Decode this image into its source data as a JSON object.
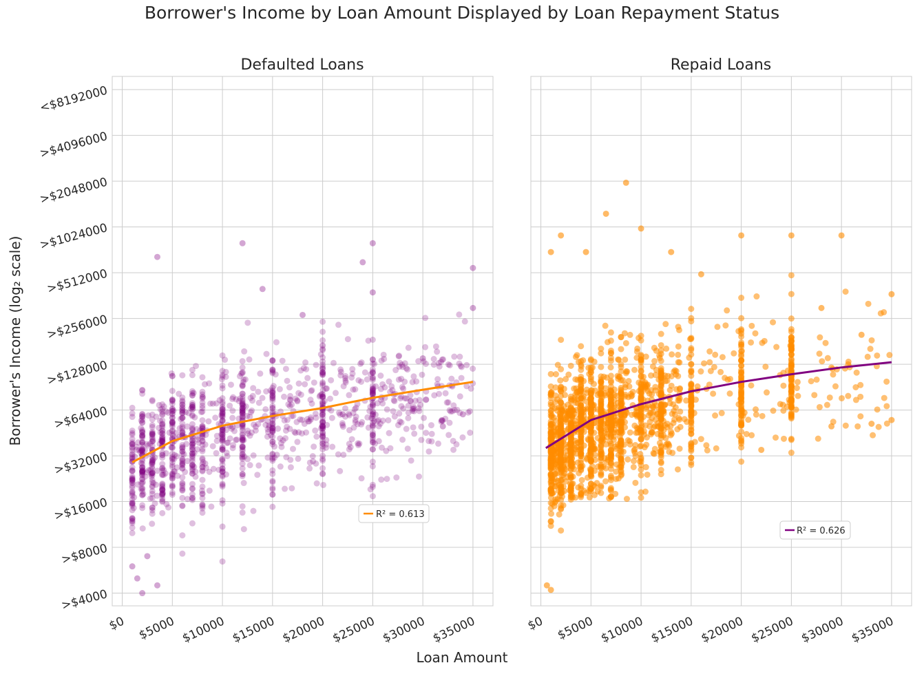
{
  "figure": {
    "title": "Borrower's Income by Loan Amount Displayed by Loan Repayment Status",
    "xlabel": "Loan Amount",
    "ylabel": "Borrower's Income (log₂  scale)"
  },
  "colors": {
    "purple": "#800080",
    "orange": "#ff8c00",
    "grid": "#cccccc",
    "text": "#262626"
  },
  "chart_data": [
    {
      "type": "scatter",
      "title": "Defaulted Loans",
      "x_scale": "linear",
      "y_scale": "log2",
      "xlim": [
        -1000,
        37000
      ],
      "ylim": [
        3300,
        10000000
      ],
      "x_ticks": [
        0,
        5000,
        10000,
        15000,
        20000,
        25000,
        30000,
        35000
      ],
      "x_tick_labels": [
        "$0",
        "$5000",
        "$10000",
        "$15000",
        "$20000",
        "$25000",
        "$30000",
        "$35000"
      ],
      "y_ticks": [
        4000,
        8000,
        16000,
        32000,
        64000,
        128000,
        256000,
        512000,
        1024000,
        2048000,
        4096000,
        8192000
      ],
      "y_tick_labels": [
        ">$4000",
        ">$8000",
        ">$16000",
        ">$32000",
        ">$64000",
        ">$128000",
        ">$256000",
        ">$512000",
        ">$1024000",
        ">$2048000",
        ">$4096000",
        "<$8192000"
      ],
      "grid": true,
      "points_color": "#800080",
      "fit_color": "#ff8c00",
      "legend": "R² = 0.613",
      "legend_position": "lower-right",
      "sample_points": [
        [
          3500,
          650000
        ],
        [
          12000,
          800000
        ],
        [
          14000,
          400000
        ],
        [
          24000,
          600000
        ],
        [
          25000,
          800000
        ],
        [
          35000,
          550000
        ],
        [
          18000,
          270000
        ],
        [
          25000,
          380000
        ],
        [
          35000,
          300000
        ],
        [
          2000,
          4000
        ],
        [
          1500,
          5000
        ],
        [
          3500,
          4500
        ],
        [
          2500,
          7000
        ],
        [
          1000,
          6000
        ],
        [
          30000,
          140000
        ],
        [
          32000,
          50000
        ],
        [
          29000,
          65000
        ],
        [
          34000,
          60000
        ],
        [
          22000,
          60000
        ],
        [
          20000,
          170000
        ]
      ],
      "fit_curve": {
        "x": [
          1000,
          5000,
          10000,
          15000,
          20000,
          25000,
          30000,
          35000
        ],
        "y": [
          29000,
          40000,
          50500,
          58500,
          66000,
          77000,
          87000,
          98000
        ]
      }
    },
    {
      "type": "scatter",
      "title": "Repaid Loans",
      "x_scale": "linear",
      "y_scale": "log2",
      "xlim": [
        -1000,
        37000
      ],
      "ylim": [
        3300,
        10000000
      ],
      "x_ticks": [
        0,
        5000,
        10000,
        15000,
        20000,
        25000,
        30000,
        35000
      ],
      "x_tick_labels": [
        "$0",
        "$5000",
        "$10000",
        "$15000",
        "$20000",
        "$25000",
        "$30000",
        "$35000"
      ],
      "grid": true,
      "points_color": "#ff8c00",
      "fit_color": "#800080",
      "legend": "R² = 0.626",
      "legend_position": "lower-right",
      "sample_points": [
        [
          8500,
          2000000
        ],
        [
          6500,
          1250000
        ],
        [
          10000,
          1000000
        ],
        [
          2000,
          900000
        ],
        [
          1000,
          700000
        ],
        [
          4500,
          700000
        ],
        [
          25000,
          900000
        ],
        [
          20000,
          900000
        ],
        [
          30000,
          900000
        ],
        [
          16000,
          500000
        ],
        [
          13000,
          700000
        ],
        [
          600,
          4500
        ],
        [
          1000,
          4200
        ],
        [
          35000,
          370000
        ],
        [
          28000,
          300000
        ],
        [
          32000,
          200000
        ],
        [
          35000,
          55000
        ],
        [
          29000,
          50000
        ],
        [
          33000,
          52000
        ],
        [
          22000,
          35000
        ]
      ],
      "fit_curve": {
        "x": [
          500,
          5000,
          10000,
          15000,
          20000,
          25000,
          30000,
          35000
        ],
        "y": [
          36000,
          55000,
          70000,
          85000,
          98000,
          110000,
          122000,
          132000
        ]
      }
    }
  ]
}
